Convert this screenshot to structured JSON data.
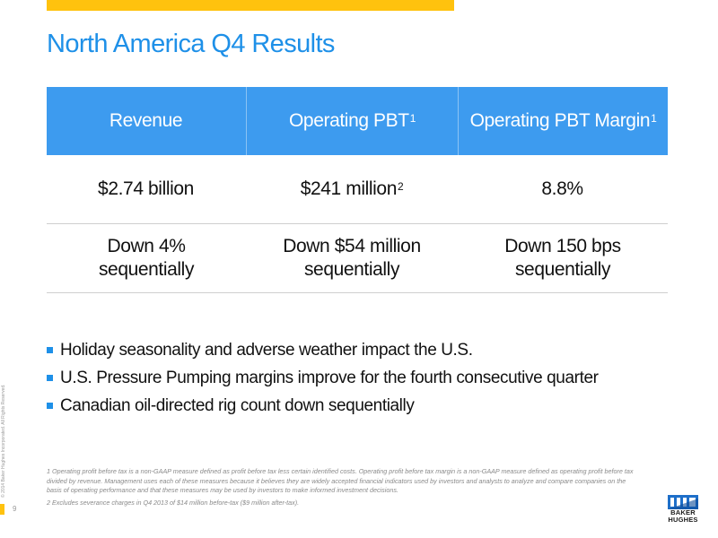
{
  "slide": {
    "title": "North America Q4 Results",
    "page_number": "9",
    "copyright": "© 2014 Baker Hughes Incorporated. All Rights Reserved."
  },
  "table": {
    "headers": [
      {
        "label": "Revenue",
        "sup": ""
      },
      {
        "label": "Operating PBT",
        "sup": "1"
      },
      {
        "label": "Operating PBT Margin",
        "sup": "1"
      }
    ],
    "values": [
      {
        "text": "$2.74 billion",
        "sup": ""
      },
      {
        "text": "$241 million",
        "sup": "2"
      },
      {
        "text": "8.8%",
        "sup": ""
      }
    ],
    "changes": [
      {
        "line1": "Down 4%",
        "line2": "sequentially"
      },
      {
        "line1": "Down $54 million",
        "line2": "sequentially"
      },
      {
        "line1": "Down 150 bps",
        "line2": "sequentially"
      }
    ]
  },
  "bullets": [
    "Holiday seasonality and adverse weather impact the U.S.",
    "U.S. Pressure Pumping margins improve for the fourth consecutive quarter",
    "Canadian oil-directed rig count down sequentially"
  ],
  "footnotes": [
    "1 Operating profit before tax is a non-GAAP measure defined as profit before tax less certain identified costs. Operating profit before tax margin is a non-GAAP measure defined as operating profit before tax divided by revenue. Management uses each of these measures because it believes they are widely accepted financial indicators used by investors and analysts to analyze and compare companies on the basis of operating performance and that these measures may be used by investors to make informed investment decisions.",
    "2 Excludes severance charges in Q4 2013 of $14 million before-tax ($9 million after-tax)."
  ],
  "logo": {
    "line1": "BAKER",
    "line2": "HUGHES"
  },
  "colors": {
    "accent_yellow": "#FFC20E",
    "brand_blue": "#1E90E8",
    "header_blue": "#3D9BEF"
  }
}
